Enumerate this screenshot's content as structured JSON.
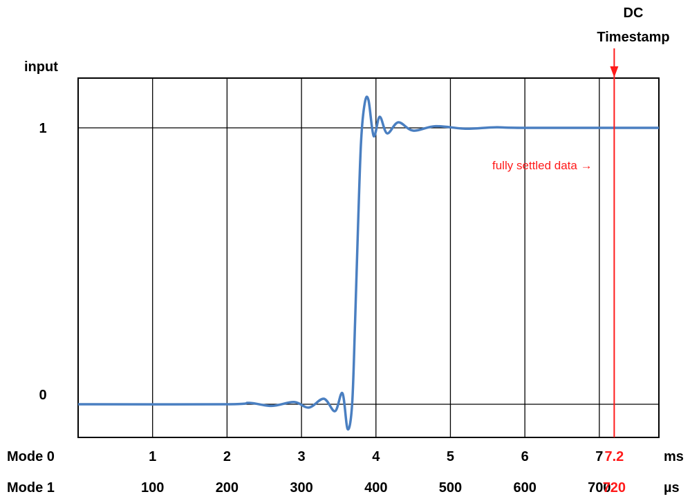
{
  "chart_data": {
    "type": "line",
    "ylabel": "input",
    "y_ticks": [
      "0",
      "1"
    ],
    "ylim": [
      -0.12,
      1.18
    ],
    "xlim": [
      0,
      7.8
    ],
    "x_unit_mode0": "ms",
    "x_unit_mode1": "µs",
    "axis_rows": [
      {
        "name": "Mode 0",
        "ticks": [
          "1",
          "2",
          "3",
          "4",
          "5",
          "6",
          "7"
        ],
        "highlight": "7.2",
        "unit": "ms"
      },
      {
        "name": "Mode 1",
        "ticks": [
          "100",
          "200",
          "300",
          "400",
          "500",
          "600",
          "700"
        ],
        "highlight": "720",
        "unit": "µs"
      }
    ],
    "tick_positions_ms": [
      1,
      2,
      3,
      4,
      5,
      6,
      7
    ],
    "grid": true,
    "series": [
      {
        "color": "#4a7fc1",
        "step_time_ms": 3.78,
        "x": [
          0,
          2.0,
          2.3,
          2.6,
          2.9,
          3.1,
          3.3,
          3.45,
          3.55,
          3.62,
          3.68,
          3.72,
          3.76,
          3.8,
          3.85,
          3.9,
          3.97,
          4.05,
          4.15,
          4.3,
          4.5,
          4.8,
          5.2,
          5.6,
          6.0,
          7.8
        ],
        "y": [
          0,
          0,
          0.005,
          -0.006,
          0.008,
          -0.012,
          0.02,
          -0.025,
          0.04,
          -0.09,
          0.0,
          0.3,
          0.65,
          0.95,
          1.09,
          1.1,
          0.97,
          1.04,
          0.98,
          1.02,
          0.99,
          1.006,
          0.997,
          1.002,
          1.0,
          1.0
        ]
      }
    ],
    "marker": {
      "label": "DC\nTimestamp",
      "label_line1": "DC",
      "label_line2": "Timestamp",
      "x_ms": 7.2,
      "color": "#ff1a1a",
      "annotation": "fully settled data →"
    }
  }
}
